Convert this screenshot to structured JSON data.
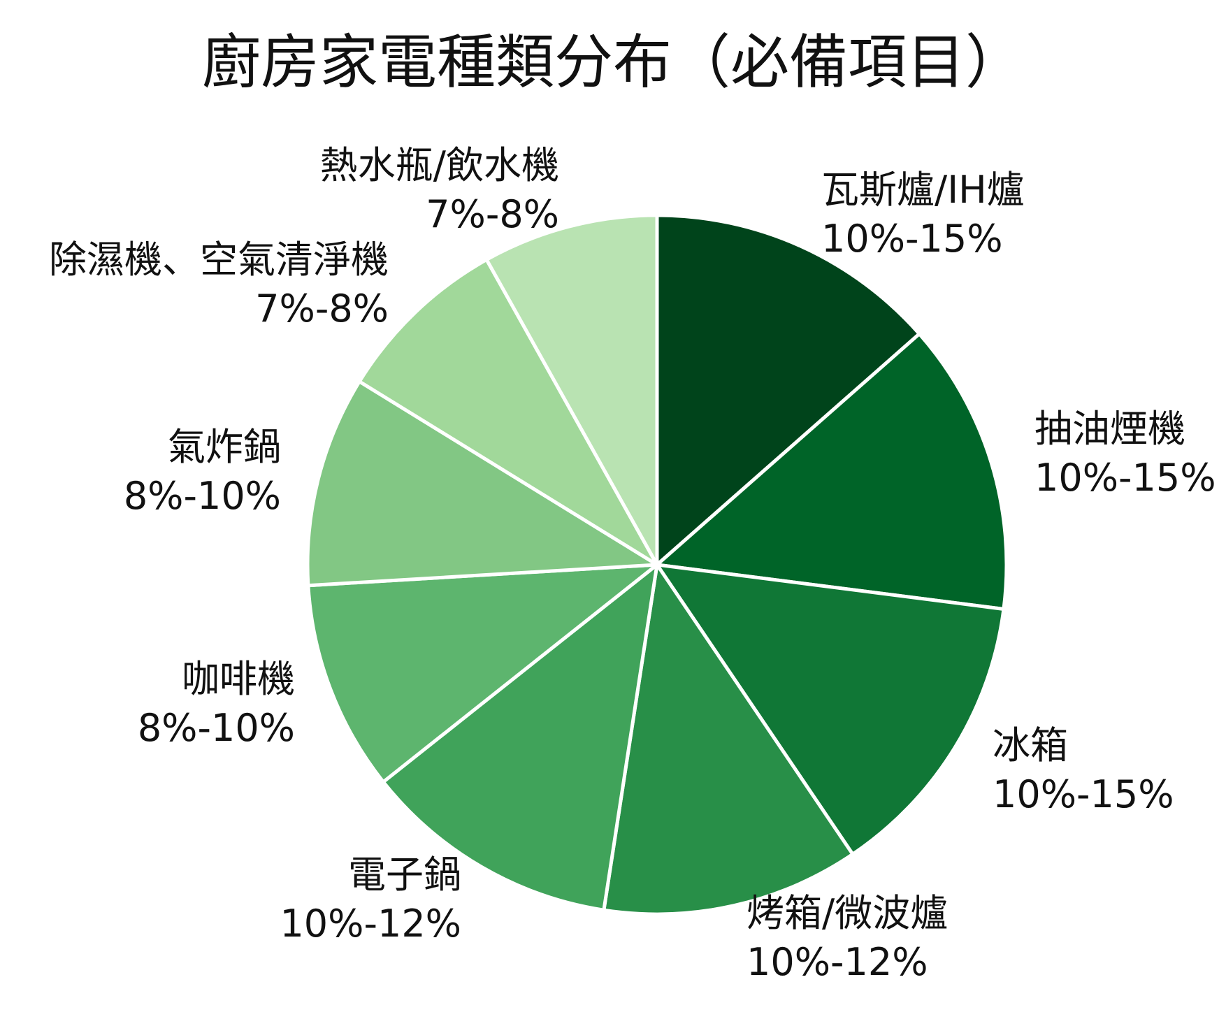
{
  "chart_data": {
    "type": "pie",
    "title": "廚房家電種類分布（必備項目）",
    "slices": [
      {
        "label": "瓦斯爐/IH爐",
        "range": "10%-15%",
        "value": 12.5,
        "color": "#00441b"
      },
      {
        "label": "抽油煙機",
        "range": "10%-15%",
        "value": 12.5,
        "color": "#006428"
      },
      {
        "label": "冰箱",
        "range": "10%-15%",
        "value": 12.5,
        "color": "#107736"
      },
      {
        "label": "烤箱/微波爐",
        "range": "10%-12%",
        "value": 11,
        "color": "#288f48"
      },
      {
        "label": "電子鍋",
        "range": "10%-12%",
        "value": 11,
        "color": "#40a35a"
      },
      {
        "label": "咖啡機",
        "range": "8%-10%",
        "value": 9,
        "color": "#5db56e"
      },
      {
        "label": "氣炸鍋",
        "range": "8%-10%",
        "value": 9,
        "color": "#82c784"
      },
      {
        "label": "除濕機、空氣清淨機",
        "range": "7%-8%",
        "value": 7.5,
        "color": "#a1d89a"
      },
      {
        "label": "熱水瓶/飲水機",
        "range": "7%-8%",
        "value": 7.5,
        "color": "#b9e3b2"
      }
    ]
  }
}
